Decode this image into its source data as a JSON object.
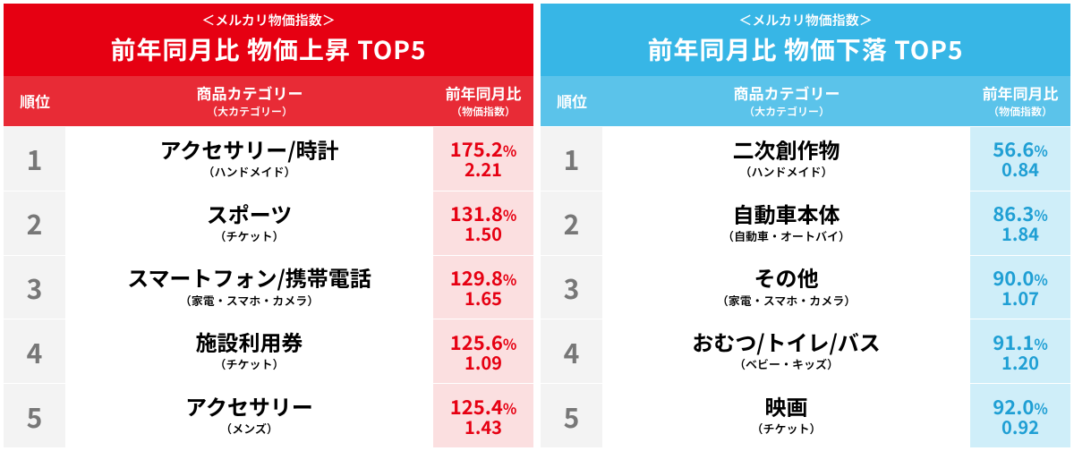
{
  "panels": [
    {
      "colors": {
        "primary": "#e60012",
        "header_shade": "#e82b36",
        "rank_bg": "#f3f3f3",
        "rank_text": "#777777",
        "value_bg": "#fbdfe0",
        "value_text": "#e60012"
      },
      "supertitle": "＜メルカリ物価指数＞",
      "title": "前年同月比 物価上昇 TOP5",
      "columns": {
        "rank": {
          "main": "順位"
        },
        "category": {
          "main": "商品カテゴリー",
          "sub": "（大カテゴリー）"
        },
        "value": {
          "main": "前年同月比",
          "sub": "（物価指数）"
        }
      },
      "rows": [
        {
          "rank": "1",
          "cat": "アクセサリー/時計",
          "cat_sub": "（ハンドメイド）",
          "pct": "175.2",
          "idx": "2.21"
        },
        {
          "rank": "2",
          "cat": "スポーツ",
          "cat_sub": "（チケット）",
          "pct": "131.8",
          "idx": "1.50"
        },
        {
          "rank": "3",
          "cat": "スマートフォン/携帯電話",
          "cat_sub": "（家電・スマホ・カメラ）",
          "pct": "129.8",
          "idx": "1.65"
        },
        {
          "rank": "4",
          "cat": "施設利用券",
          "cat_sub": "（チケット）",
          "pct": "125.6",
          "idx": "1.09"
        },
        {
          "rank": "5",
          "cat": "アクセサリー",
          "cat_sub": "（メンズ）",
          "pct": "125.4",
          "idx": "1.43"
        }
      ]
    },
    {
      "colors": {
        "primary": "#37b6e6",
        "header_shade": "#5bc3ea",
        "rank_bg": "#f3f3f3",
        "rank_text": "#777777",
        "value_bg": "#cfeef9",
        "value_text": "#1f9fd4"
      },
      "supertitle": "＜メルカリ物価指数＞",
      "title": "前年同月比 物価下落 TOP5",
      "columns": {
        "rank": {
          "main": "順位"
        },
        "category": {
          "main": "商品カテゴリー",
          "sub": "（大カテゴリー）"
        },
        "value": {
          "main": "前年同月比",
          "sub": "（物価指数）"
        }
      },
      "rows": [
        {
          "rank": "1",
          "cat": "二次創作物",
          "cat_sub": "（ハンドメイド）",
          "pct": "56.6",
          "idx": "0.84"
        },
        {
          "rank": "2",
          "cat": "自動車本体",
          "cat_sub": "（自動車・オートバイ）",
          "pct": "86.3",
          "idx": "1.84"
        },
        {
          "rank": "3",
          "cat": "その他",
          "cat_sub": "（家電・スマホ・カメラ）",
          "pct": "90.0",
          "idx": "1.07"
        },
        {
          "rank": "4",
          "cat": "おむつ/トイレ/バス",
          "cat_sub": "（ベビー・キッズ）",
          "pct": "91.1",
          "idx": "1.20"
        },
        {
          "rank": "5",
          "cat": "映画",
          "cat_sub": "（チケット）",
          "pct": "92.0",
          "idx": "0.92"
        }
      ]
    }
  ],
  "pct_unit": "%"
}
